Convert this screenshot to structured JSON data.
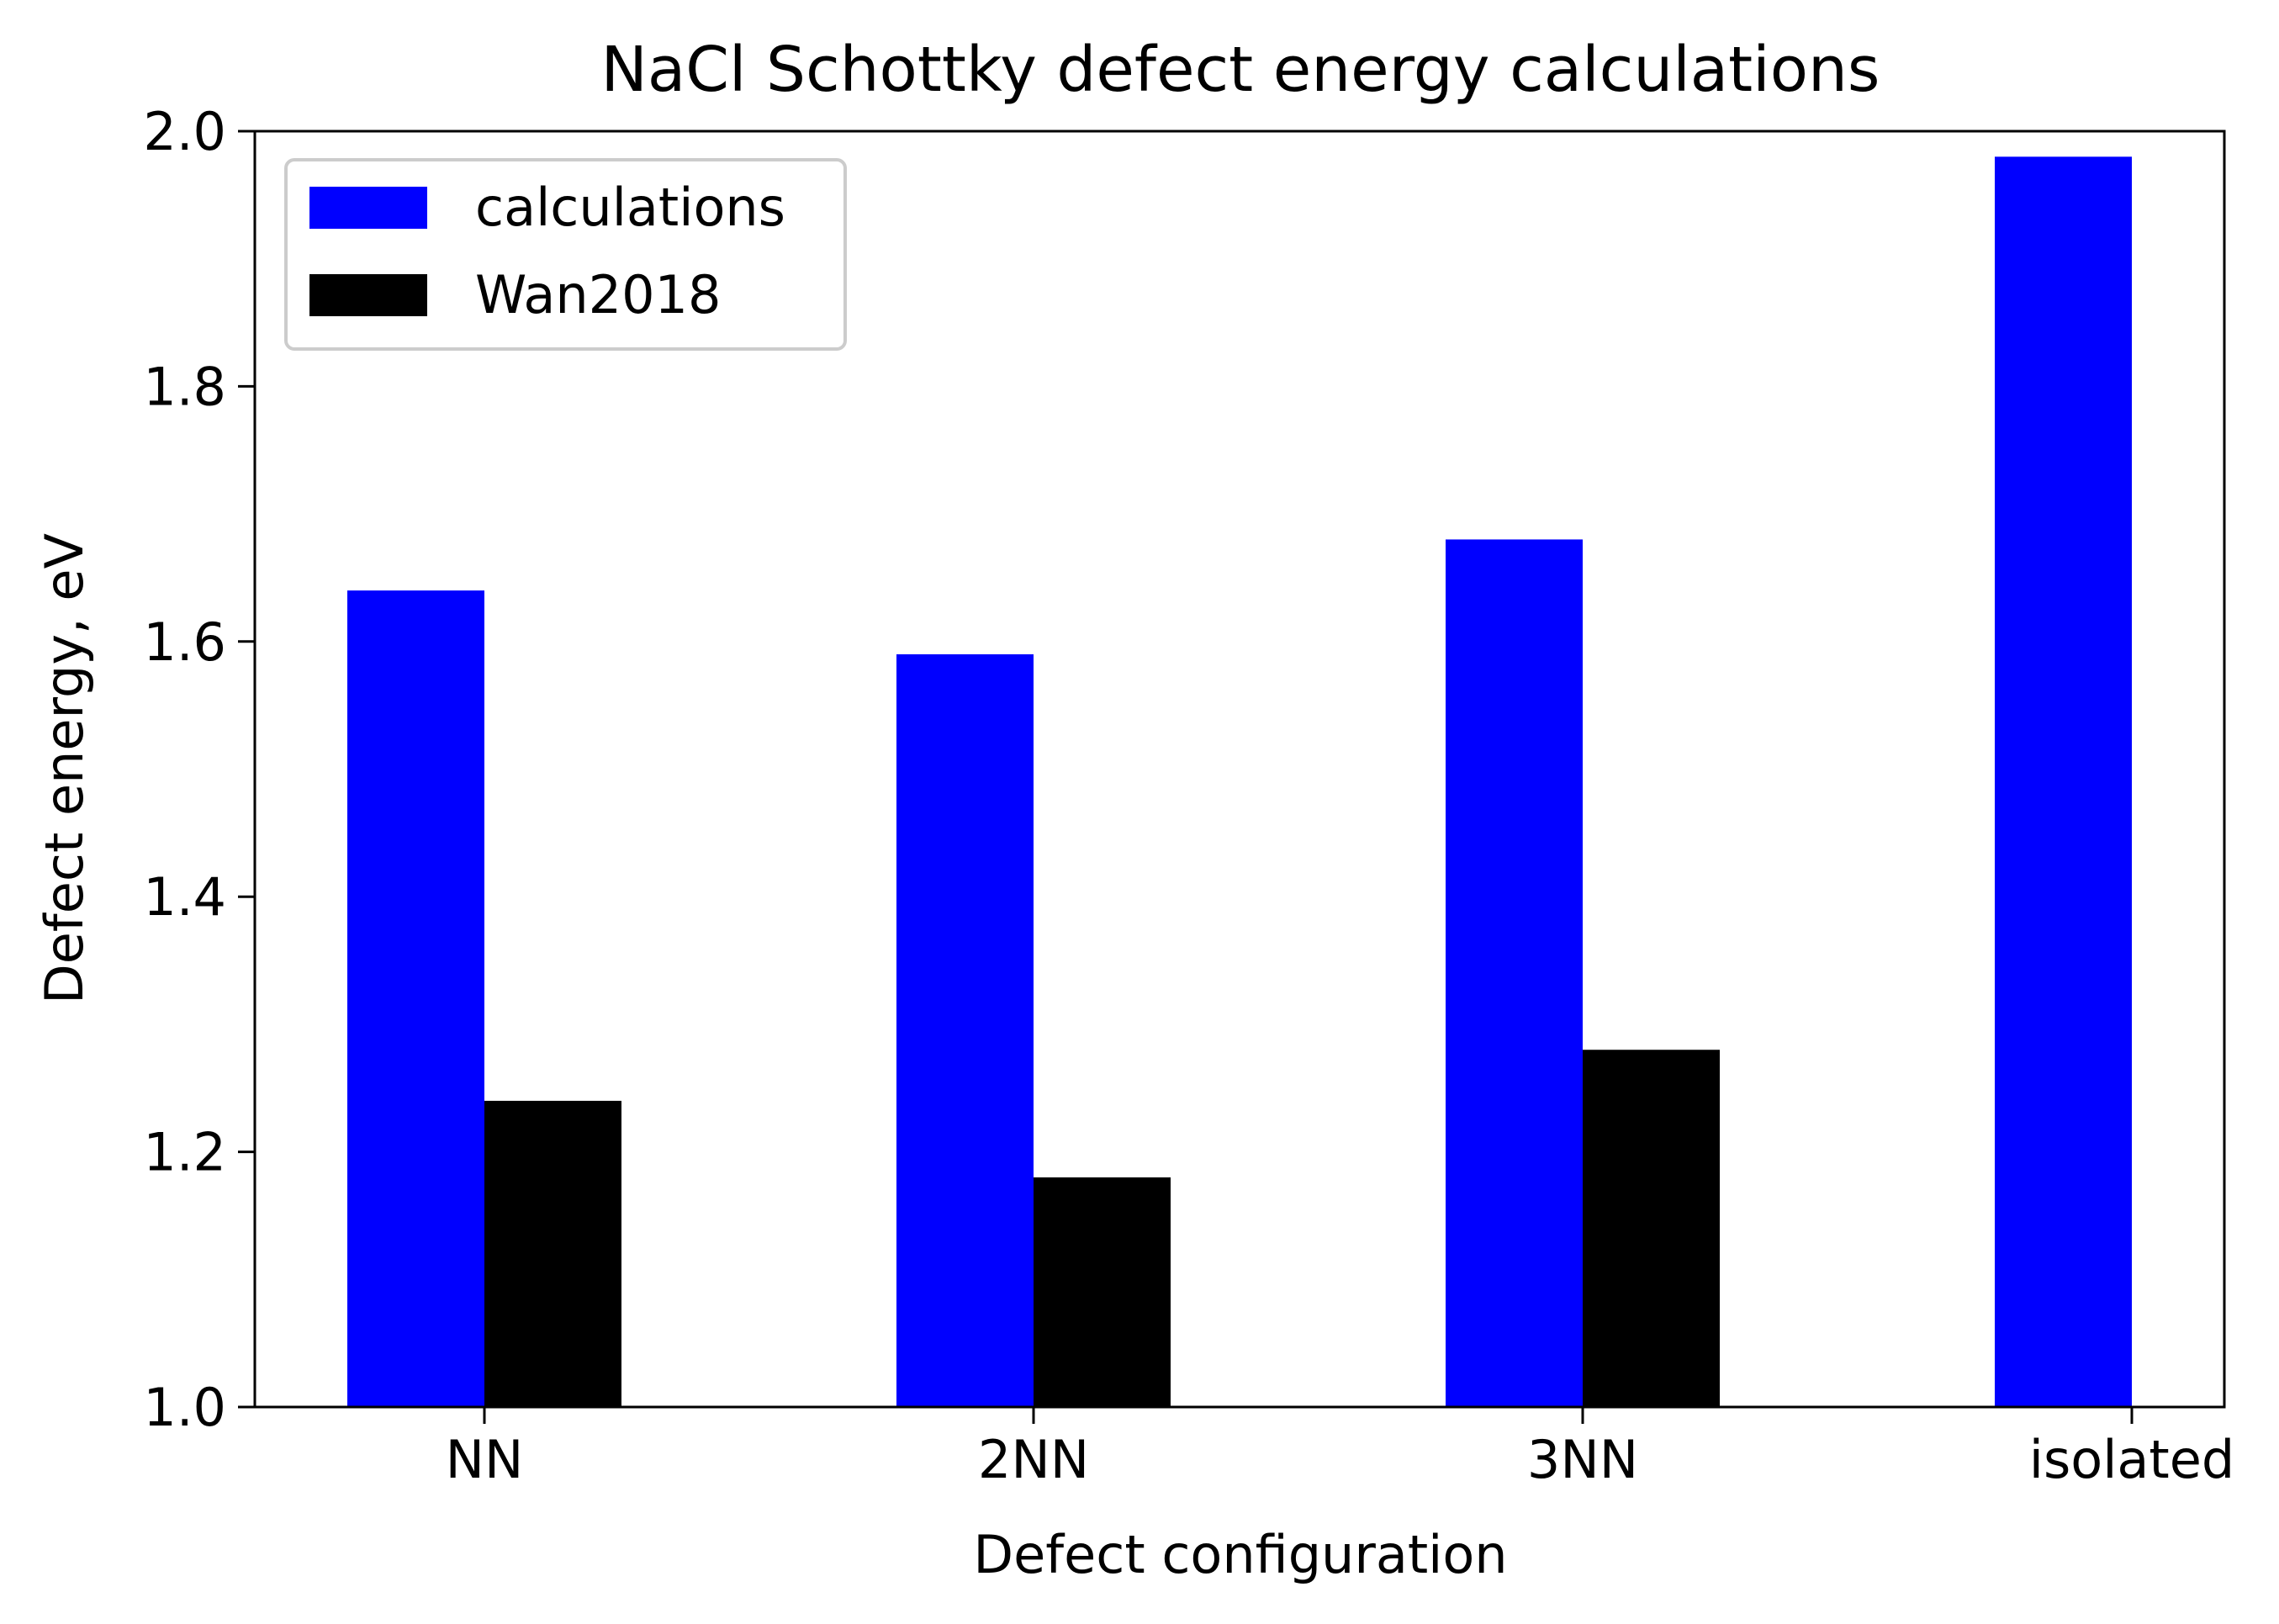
{
  "chart_data": {
    "type": "bar",
    "title": "NaCl Schottky defect energy calculations",
    "xlabel": "Defect configuration",
    "ylabel": "Defect energy, eV",
    "categories": [
      "NN",
      "2NN",
      "3NN",
      "isolated"
    ],
    "series": [
      {
        "name": "calculations",
        "color": "#0000ff",
        "values": [
          1.64,
          1.59,
          1.68,
          1.98
        ]
      },
      {
        "name": "Wan2018",
        "color": "#000000",
        "values": [
          1.24,
          1.18,
          1.28,
          null
        ]
      }
    ],
    "ylim": [
      1.0,
      2.0
    ],
    "yticks": [
      "1.0",
      "1.2",
      "1.4",
      "1.6",
      "1.8",
      "2.0"
    ],
    "grid": false,
    "legend_position": "upper-left"
  }
}
